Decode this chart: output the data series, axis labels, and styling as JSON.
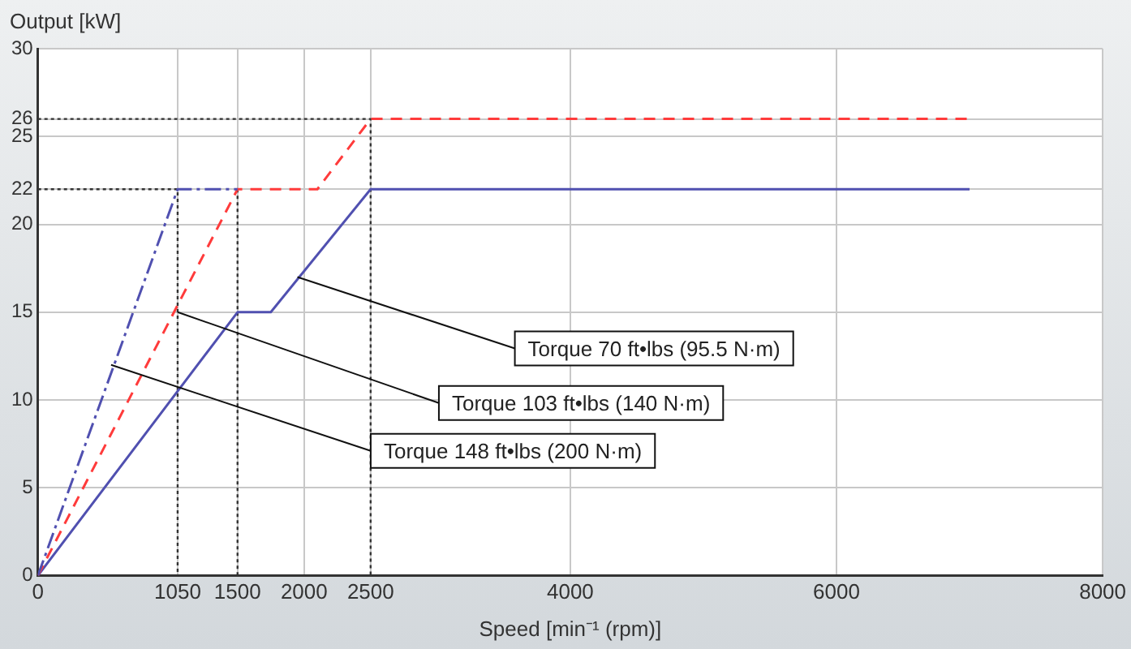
{
  "chart_data": {
    "type": "line",
    "xlabel": "Speed [min⁻¹ (rpm)]",
    "ylabel": "Output [kW]",
    "xlim": [
      0,
      8000
    ],
    "xticks": [
      0,
      1050,
      1500,
      2000,
      2500,
      4000,
      6000,
      8000
    ],
    "ylim": [
      0,
      30
    ],
    "yticks": [
      0,
      5,
      10,
      15,
      20,
      22,
      25,
      26,
      30
    ],
    "grid": true,
    "legend": false,
    "marker": "none",
    "series": [
      {
        "x": [
          0,
          1050,
          1500
        ],
        "values": [
          0,
          22,
          22
        ],
        "color": "#5050b0",
        "line_style": "dashdot"
      },
      {
        "x": [
          0,
          1500,
          2100,
          2500,
          7000
        ],
        "values": [
          0,
          22,
          22,
          26,
          26
        ],
        "color": "#ff3b3b",
        "line_style": "dashed"
      },
      {
        "x": [
          0,
          1500,
          1750,
          2500,
          7000
        ],
        "values": [
          0,
          15,
          15,
          22,
          22
        ],
        "color": "#5050b0",
        "line_style": "solid"
      },
      {
        "x": [
          0,
          1050,
          1050
        ],
        "values": [
          22,
          22,
          0
        ],
        "color": "#333333",
        "line_style": "dotted"
      },
      {
        "x": [
          1500,
          1500
        ],
        "values": [
          22,
          0
        ],
        "color": "#333333",
        "line_style": "dotted"
      },
      {
        "x": [
          0,
          2500,
          2500
        ],
        "values": [
          26,
          26,
          0
        ],
        "color": "#333333",
        "line_style": "dotted"
      }
    ],
    "annotations": [
      {
        "text": "Torque 70 ft•lbs (95.5 N·m)",
        "x": 1950,
        "y": 17
      },
      {
        "text": "Torque 103 ft•lbs (140 N·m)",
        "x": 1050,
        "y": 15
      },
      {
        "text": "Torque 148 ft•lbs (200 N·m)",
        "x": 550,
        "y": 12
      }
    ]
  }
}
